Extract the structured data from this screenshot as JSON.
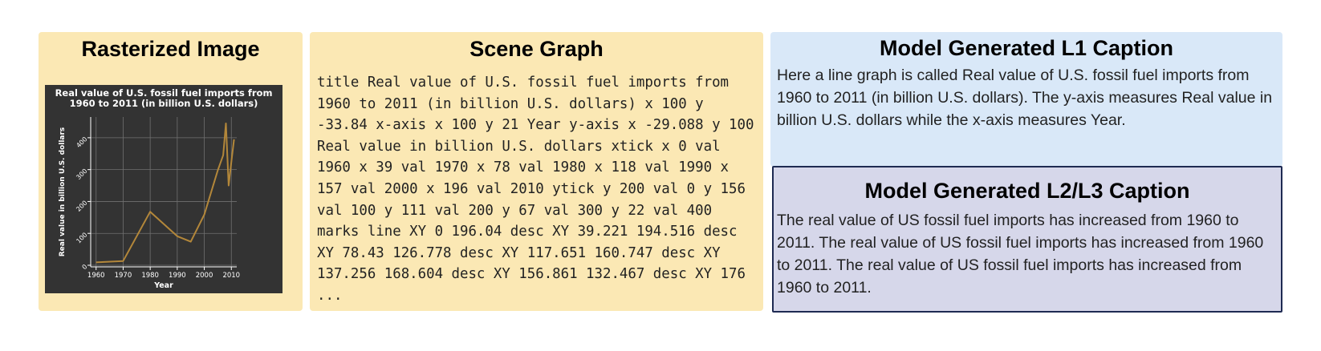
{
  "panels": {
    "raster": {
      "title": "Rasterized Image"
    },
    "scene": {
      "title": "Scene Graph",
      "text": "title Real value of U.S. fossil fuel imports from 1960 to 2011 (in billion U.S. dollars) x 100 y -33.84 x-axis x 100 y 21 Year y-axis x -29.088 y 100 Real value in billion U.S. dollars xtick x 0 val 1960 x 39 val 1970 x 78 val 1980 x 118 val 1990 x 157 val 2000 x 196 val 2010 ytick y 200 val 0 y 156 val 100 y 111 val 200 y 67 val 300 y 22 val 400 marks line XY 0 196.04 desc XY 39.221 194.516 desc XY 78.43 126.778 desc XY 117.651 160.747 desc XY 137.256 168.604 desc XY 156.861 132.467 desc XY 176 ..."
    },
    "l1": {
      "title": "Model Generated L1 Caption",
      "text": "Here a line graph is called Real value of U.S. fossil fuel imports from 1960 to 2011 (in billion U.S. dollars). The y-axis measures Real value in billion U.S. dollars while the x-axis measures Year."
    },
    "l2l3": {
      "title": "Model Generated L2/L3 Caption",
      "text": "The real value of US fossil fuel imports has increased from 1960 to 2011. The real value of US fossil fuel imports has increased from 1960 to 2011. The real value of US fossil fuel imports has increased from 1960 to 2011."
    }
  },
  "chart_data": {
    "type": "line",
    "title_lines": [
      "Real value of U.S. fossil fuel imports from",
      "1960 to 2011 (in billion U.S. dollars)"
    ],
    "xlabel": "Year",
    "ylabel": "Real value in billion U.S. dollars",
    "x_ticks": [
      "1960",
      "1970",
      "1980",
      "1990",
      "2000",
      "2010"
    ],
    "y_ticks": [
      "0",
      "100",
      "200",
      "300",
      "400"
    ],
    "xlim": [
      1958,
      2012
    ],
    "ylim": [
      -5,
      465
    ],
    "x": [
      1960,
      1970,
      1980,
      1990,
      1995,
      2000,
      2005,
      2007,
      2008,
      2009,
      2010,
      2011
    ],
    "values": [
      9,
      13,
      168,
      91,
      74,
      159,
      298,
      345,
      445,
      250,
      325,
      395
    ],
    "colors": {
      "background": "#333333",
      "line": "#b3873a",
      "grid": "#707070",
      "text": "#ffffff"
    },
    "grid": true
  }
}
